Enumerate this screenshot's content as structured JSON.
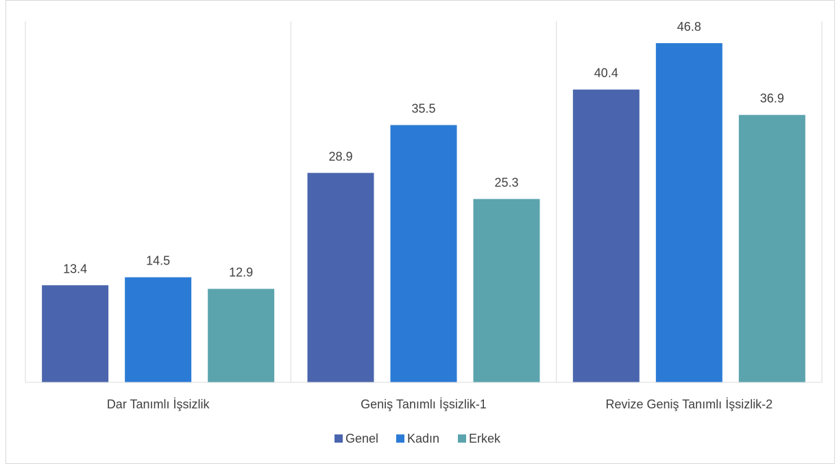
{
  "chart_data": {
    "type": "bar",
    "title": "",
    "xlabel": "",
    "ylabel": "",
    "categories": [
      "Dar Tanımlı İşsizlik",
      "Geniş Tanımlı İşsizlik-1",
      "Revize Geniş Tanımlı İşsizlik-2"
    ],
    "series": [
      {
        "name": "Genel",
        "color": "#4a65ad",
        "values": [
          13.4,
          28.9,
          40.4
        ]
      },
      {
        "name": "Kadın",
        "color": "#2b7bd6",
        "values": [
          14.5,
          35.5,
          46.8
        ]
      },
      {
        "name": "Erkek",
        "color": "#5ba4ad",
        "values": [
          12.9,
          25.3,
          36.9
        ]
      }
    ],
    "ylim": [
      0,
      50
    ],
    "grid": false,
    "category_separators": true,
    "legend": {
      "position": "bottom"
    }
  }
}
